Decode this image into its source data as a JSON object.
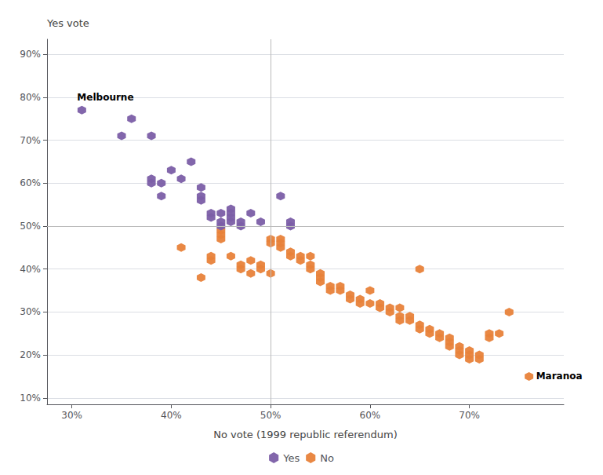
{
  "chart_data": {
    "type": "scatter",
    "xlabel": "No vote (1999 republic referendum)",
    "ylabel": "Yes vote",
    "marker": "hexagon",
    "grid": true,
    "legend": "bottom",
    "xlim": [
      0.275,
      0.795
    ],
    "ylim": [
      0.085,
      0.935
    ],
    "xticks": [
      {
        "value": 0.3,
        "label": "30%"
      },
      {
        "value": 0.4,
        "label": "40%"
      },
      {
        "value": 0.5,
        "label": "50%"
      },
      {
        "value": 0.6,
        "label": "60%"
      },
      {
        "value": 0.7,
        "label": "70%"
      }
    ],
    "yticks": [
      {
        "value": 0.1,
        "label": "10%"
      },
      {
        "value": 0.2,
        "label": "20%"
      },
      {
        "value": 0.3,
        "label": "30%"
      },
      {
        "value": 0.4,
        "label": "40%"
      },
      {
        "value": 0.5,
        "label": "50%"
      },
      {
        "value": 0.6,
        "label": "60%"
      },
      {
        "value": 0.7,
        "label": "70%"
      },
      {
        "value": 0.8,
        "label": "80%"
      },
      {
        "value": 0.9,
        "label": "90%"
      }
    ],
    "vline": 0.5,
    "hline": 0.5,
    "annotations": [
      {
        "text": "Melbourne",
        "x": 0.31,
        "y": 0.77
      },
      {
        "text": "Maranoa",
        "x": 0.76,
        "y": 0.15
      }
    ],
    "series": [
      {
        "name": "Yes",
        "color": "#7b5ea7",
        "values": [
          [
            0.31,
            0.77
          ],
          [
            0.35,
            0.71
          ],
          [
            0.36,
            0.75
          ],
          [
            0.38,
            0.71
          ],
          [
            0.38,
            0.61
          ],
          [
            0.38,
            0.6
          ],
          [
            0.39,
            0.6
          ],
          [
            0.39,
            0.57
          ],
          [
            0.4,
            0.63
          ],
          [
            0.41,
            0.61
          ],
          [
            0.42,
            0.65
          ],
          [
            0.43,
            0.59
          ],
          [
            0.43,
            0.57
          ],
          [
            0.43,
            0.56
          ],
          [
            0.44,
            0.53
          ],
          [
            0.44,
            0.52
          ],
          [
            0.45,
            0.53
          ],
          [
            0.45,
            0.51
          ],
          [
            0.45,
            0.5
          ],
          [
            0.46,
            0.54
          ],
          [
            0.46,
            0.53
          ],
          [
            0.46,
            0.52
          ],
          [
            0.46,
            0.51
          ],
          [
            0.47,
            0.51
          ],
          [
            0.47,
            0.5
          ],
          [
            0.48,
            0.53
          ],
          [
            0.49,
            0.51
          ],
          [
            0.51,
            0.57
          ],
          [
            0.52,
            0.51
          ],
          [
            0.52,
            0.5
          ]
        ]
      },
      {
        "name": "No",
        "color": "#e8823a",
        "values": [
          [
            0.41,
            0.45
          ],
          [
            0.43,
            0.38
          ],
          [
            0.44,
            0.43
          ],
          [
            0.44,
            0.42
          ],
          [
            0.45,
            0.49
          ],
          [
            0.45,
            0.48
          ],
          [
            0.45,
            0.47
          ],
          [
            0.46,
            0.43
          ],
          [
            0.47,
            0.41
          ],
          [
            0.47,
            0.4
          ],
          [
            0.48,
            0.42
          ],
          [
            0.48,
            0.39
          ],
          [
            0.49,
            0.41
          ],
          [
            0.49,
            0.4
          ],
          [
            0.5,
            0.47
          ],
          [
            0.5,
            0.46
          ],
          [
            0.5,
            0.39
          ],
          [
            0.51,
            0.47
          ],
          [
            0.51,
            0.46
          ],
          [
            0.51,
            0.45
          ],
          [
            0.52,
            0.44
          ],
          [
            0.52,
            0.43
          ],
          [
            0.53,
            0.43
          ],
          [
            0.53,
            0.42
          ],
          [
            0.54,
            0.43
          ],
          [
            0.54,
            0.41
          ],
          [
            0.54,
            0.4
          ],
          [
            0.55,
            0.39
          ],
          [
            0.55,
            0.38
          ],
          [
            0.55,
            0.37
          ],
          [
            0.56,
            0.36
          ],
          [
            0.56,
            0.35
          ],
          [
            0.57,
            0.36
          ],
          [
            0.57,
            0.35
          ],
          [
            0.58,
            0.34
          ],
          [
            0.58,
            0.33
          ],
          [
            0.59,
            0.33
          ],
          [
            0.59,
            0.32
          ],
          [
            0.6,
            0.35
          ],
          [
            0.6,
            0.32
          ],
          [
            0.61,
            0.32
          ],
          [
            0.61,
            0.31
          ],
          [
            0.62,
            0.31
          ],
          [
            0.62,
            0.3
          ],
          [
            0.63,
            0.31
          ],
          [
            0.63,
            0.29
          ],
          [
            0.63,
            0.28
          ],
          [
            0.64,
            0.29
          ],
          [
            0.64,
            0.28
          ],
          [
            0.65,
            0.4
          ],
          [
            0.65,
            0.27
          ],
          [
            0.65,
            0.26
          ],
          [
            0.66,
            0.26
          ],
          [
            0.66,
            0.25
          ],
          [
            0.67,
            0.25
          ],
          [
            0.67,
            0.24
          ],
          [
            0.68,
            0.24
          ],
          [
            0.68,
            0.23
          ],
          [
            0.68,
            0.22
          ],
          [
            0.69,
            0.22
          ],
          [
            0.69,
            0.21
          ],
          [
            0.69,
            0.2
          ],
          [
            0.7,
            0.21
          ],
          [
            0.7,
            0.2
          ],
          [
            0.7,
            0.19
          ],
          [
            0.71,
            0.2
          ],
          [
            0.71,
            0.19
          ],
          [
            0.72,
            0.25
          ],
          [
            0.72,
            0.24
          ],
          [
            0.73,
            0.25
          ],
          [
            0.74,
            0.3
          ],
          [
            0.76,
            0.15
          ]
        ]
      }
    ]
  }
}
